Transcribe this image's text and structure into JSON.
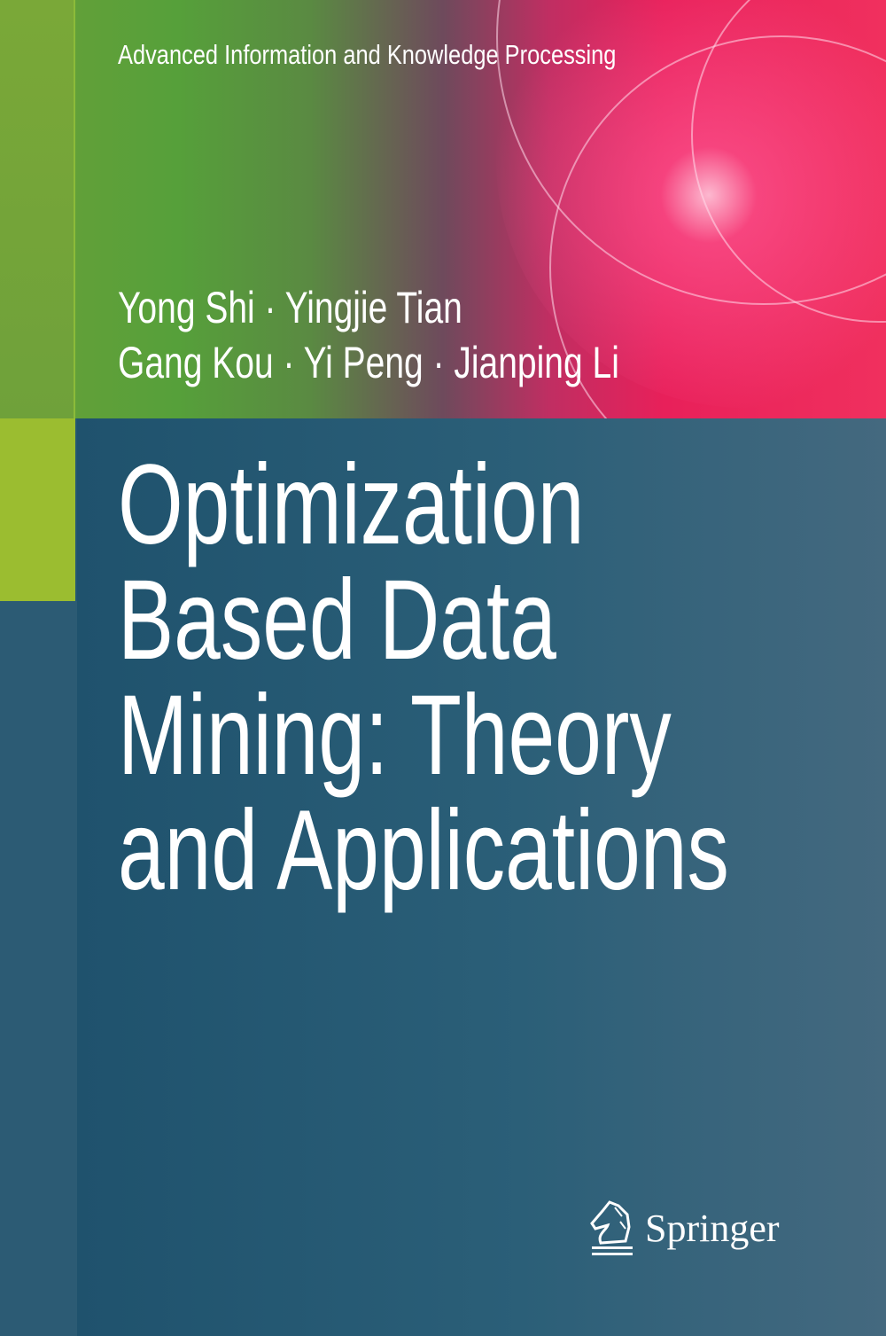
{
  "series": "Advanced Information and Knowledge Processing",
  "authors": {
    "line1": "Yong Shi · Yingjie Tian",
    "line2": "Gang Kou · Yi Peng · Jianping Li"
  },
  "title": {
    "line1": "Optimization",
    "line2": "Based Data",
    "line3": "Mining: Theory",
    "line4": "and Applications"
  },
  "publisher": {
    "name": "Springer",
    "icon": "springer-knight-icon"
  },
  "colors": {
    "main_blue": "#245872",
    "lime": "#9bbd30",
    "green": "#56a03a",
    "pink": "#e8205a"
  }
}
